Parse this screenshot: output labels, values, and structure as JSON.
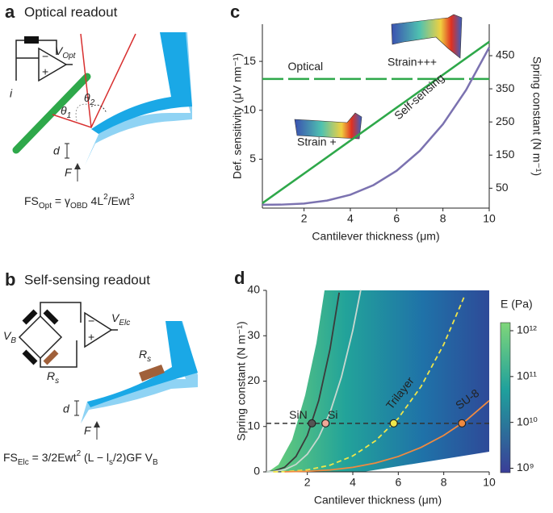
{
  "diagram_a": {
    "label": "a",
    "title": "Optical readout",
    "v_out": {
      "base": "V",
      "sub": "Opt"
    },
    "current": "i",
    "minus": "−",
    "plus": "+",
    "theta2": {
      "base": "θ",
      "sub": "2"
    },
    "theta1": {
      "base": "θ",
      "sub": "1"
    },
    "d": "d",
    "F": "F",
    "formula": [
      {
        "t": "FS"
      },
      {
        "sub": "Opt"
      },
      {
        "t": " = γ"
      },
      {
        "sub": "OBD"
      },
      {
        "t": " 4L"
      },
      {
        "sup": "2"
      },
      {
        "t": "/Ewt"
      },
      {
        "sup": "3"
      }
    ]
  },
  "diagram_b": {
    "label": "b",
    "title": "Self-sensing readout",
    "v_out": {
      "base": "V",
      "sub": "Elc"
    },
    "v_in": {
      "base": "V",
      "sub": "B"
    },
    "minus": "−",
    "plus": "+",
    "r_bridge": {
      "base": "R",
      "sub": "s"
    },
    "r_cant": {
      "base": "R",
      "sub": "s"
    },
    "d": "d",
    "F": "F",
    "formula": [
      {
        "t": "FS"
      },
      {
        "sub": "Elc"
      },
      {
        "t": " = 3/2Ewt"
      },
      {
        "sup": "2"
      },
      {
        "t": " (L − l"
      },
      {
        "sub": "s"
      },
      {
        "t": "/2)GF V"
      },
      {
        "sub": "B"
      }
    ]
  },
  "chart_data": [
    {
      "type": "line",
      "label": "c",
      "xlabel": "Cantilever thickness (μm)",
      "ylabel": "Def. sensitivity (μV nm⁻¹)",
      "y2label": "Spring constant (N m⁻¹)",
      "xlim": [
        0.2,
        10
      ],
      "xticks": [
        2,
        4,
        6,
        8,
        10
      ],
      "ylim": [
        0,
        18.8
      ],
      "yticks": [
        5,
        10,
        15
      ],
      "y2lim": [
        -10,
        545
      ],
      "y2ticks": [
        50,
        150,
        250,
        350,
        450
      ],
      "series": [
        {
          "name": "Optical",
          "color": "#2ea84a",
          "dash": true,
          "x": [
            0.2,
            10
          ],
          "values": [
            13.2,
            13.2
          ]
        },
        {
          "name": "Self-sensing",
          "color": "#2ea84a",
          "dash": false,
          "x": [
            0.2,
            1,
            2,
            3,
            4,
            5,
            6,
            7,
            8,
            9,
            10
          ],
          "values": [
            0.5,
            1.85,
            3.53,
            5.21,
            6.9,
            8.58,
            10.27,
            11.95,
            13.63,
            15.32,
            17.0
          ]
        },
        {
          "color": "#7b72b0",
          "axis": "y2",
          "dash": false,
          "x": [
            0.2,
            1,
            2,
            3,
            4,
            5,
            6,
            7,
            8,
            9,
            10
          ],
          "values": [
            0.004,
            0.5,
            3.8,
            12.8,
            30.4,
            59.4,
            102.6,
            162.9,
            243.2,
            346.3,
            475
          ]
        }
      ],
      "annotations": [
        "Strain +",
        "Strain+++"
      ]
    },
    {
      "type": "line",
      "label": "d",
      "xlabel": "Cantilever thickness (μm)",
      "ylabel": "Spring constant (N m⁻¹)",
      "xlim": [
        0.2,
        10
      ],
      "xticks": [
        2,
        4,
        6,
        8,
        10
      ],
      "ylim": [
        0,
        40
      ],
      "yticks": [
        0,
        10,
        20,
        30,
        40
      ],
      "reference_line": 10.7,
      "colorbar": {
        "label": "E (Pa)",
        "log": true,
        "lim": [
          800000000,
          1500000000000
        ],
        "ticks": [
          {
            "value": 1000000000,
            "label": "10⁹"
          },
          {
            "value": 10000000000,
            "label": "10¹⁰"
          },
          {
            "value": 100000000000,
            "label": "10¹¹"
          },
          {
            "value": 1000000000000,
            "label": "10¹²"
          }
        ]
      },
      "series": [
        {
          "name": "SiN",
          "color": "#3b3b3b",
          "label_color": "#3b3b3b",
          "marker_color": "#555555",
          "dash": false,
          "x": [
            0.2,
            0.5,
            1,
            1.5,
            2,
            2.5,
            3,
            3.4
          ],
          "values": [
            0.008,
            0.126,
            1.005,
            3.39,
            8.04,
            15.7,
            27.1,
            39.5
          ],
          "marker": {
            "x": 2.2,
            "y": 10.7
          }
        },
        {
          "name": "Si",
          "color": "#c9d8d0",
          "label_color": "#d9e4dd",
          "marker_color": "#f0a898",
          "dash": false,
          "x": [
            0.2,
            0.5,
            1,
            1.5,
            2,
            2.5,
            3,
            3.5,
            4,
            4.35
          ],
          "values": [
            0.004,
            0.061,
            0.487,
            1.64,
            3.9,
            7.61,
            13.1,
            20.9,
            31.2,
            40.1
          ],
          "marker": {
            "x": 2.8,
            "y": 10.7
          }
        },
        {
          "name": "Trilayer",
          "color": "#f0e64a",
          "label_color": "#f0e64a",
          "marker_color": "#f0e64a",
          "dash": true,
          "x": [
            0.5,
            1,
            2,
            3,
            4,
            5,
            6,
            7,
            8,
            8.9
          ],
          "values": [
            0.007,
            0.055,
            0.44,
            1.48,
            3.51,
            6.85,
            11.8,
            18.8,
            28.1,
            38.6
          ],
          "marker": {
            "x": 5.8,
            "y": 10.7
          }
        },
        {
          "name": "SU-8",
          "color": "#f08a40",
          "label_color": "#f08a40",
          "marker_color": "#f08a40",
          "dash": false,
          "x": [
            1,
            2,
            3,
            4,
            5,
            6,
            7,
            8,
            9,
            10
          ],
          "values": [
            0.016,
            0.126,
            0.42,
            1.0,
            1.96,
            3.39,
            5.39,
            8.04,
            11.4,
            15.7
          ],
          "marker": {
            "x": 8.8,
            "y": 10.7
          }
        }
      ]
    }
  ]
}
